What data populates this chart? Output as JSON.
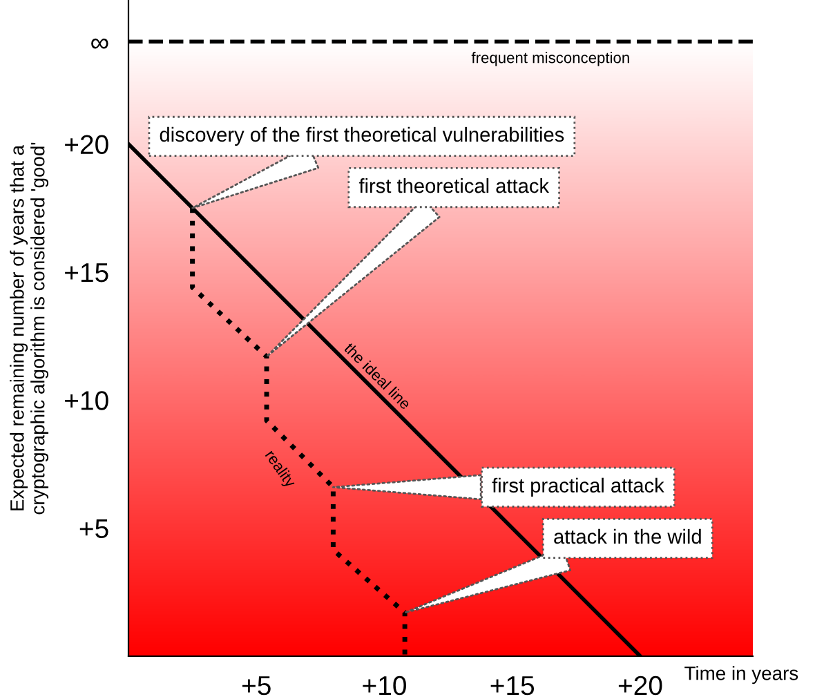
{
  "chart_data": {
    "type": "line",
    "xlabel": "Time in years",
    "ylabel": "Expected remaining number of years that a\ncryptographic algorithm is considered 'good'",
    "xlim": [
      0,
      24.4
    ],
    "ylim": [
      0,
      25.6
    ],
    "xticks": [
      {
        "value": 5,
        "label": "+5"
      },
      {
        "value": 10,
        "label": "+10"
      },
      {
        "value": 15,
        "label": "+15"
      },
      {
        "value": 20,
        "label": "+20"
      }
    ],
    "yticks": [
      {
        "value": 5,
        "label": "+5"
      },
      {
        "value": 10,
        "label": "+10"
      },
      {
        "value": 15,
        "label": "+15"
      },
      {
        "value": 20,
        "label": "+20"
      },
      {
        "value": 24,
        "label": "∞"
      }
    ],
    "series": [
      {
        "name": "the ideal line",
        "color": "#000000",
        "line_style": "solid",
        "x": [
          0,
          20
        ],
        "values": [
          20,
          0
        ]
      },
      {
        "name": "reality",
        "color": "#000000",
        "line_style": "dotted",
        "x": [
          2.5,
          2.5,
          5.4,
          5.4,
          8.0,
          8.0,
          10.8,
          10.8
        ],
        "values": [
          17.5,
          14.4,
          11.7,
          9.2,
          6.6,
          4.15,
          1.7,
          0
        ]
      }
    ],
    "ref_lines": [
      {
        "axis": "y",
        "value": 24,
        "label": "frequent misconception",
        "color": "#000000",
        "line_style": "dashed"
      }
    ],
    "annotations": [
      {
        "text": "discovery of the first theoretical vulnerabilities",
        "x": 2.5,
        "y": 17.5
      },
      "first theoretical attack",
      {
        "text": "first practical attack",
        "x": 8.0,
        "y": 6.6
      },
      {
        "text": "attack in the wild",
        "x": 10.8,
        "y": 1.7
      }
    ],
    "grid": false,
    "legend": false
  }
}
